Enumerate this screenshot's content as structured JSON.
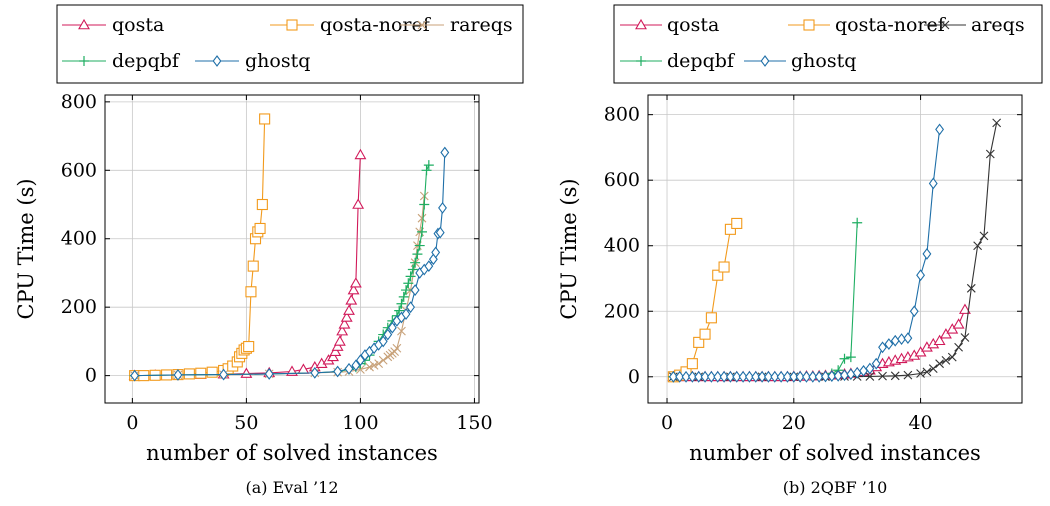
{
  "colors": {
    "qosta": "#d11a5a",
    "qosta-noref": "#f29a1c",
    "rareqs": "#c8a27a",
    "depqbf": "#1fae62",
    "ghostq": "#1f6fa8"
  },
  "chart_data": [
    {
      "type": "line",
      "caption": "(a) Eval ’12",
      "xlabel": "number of solved instances",
      "ylabel": "CPU Time (s)",
      "xlim": [
        -12,
        152
      ],
      "ylim": [
        -80,
        820
      ],
      "xticks": [
        0,
        50,
        100,
        150
      ],
      "yticks": [
        0,
        200,
        400,
        600,
        800
      ],
      "grid": true,
      "legend": {
        "position": "top",
        "rows": [
          [
            "qosta",
            "qosta-noref",
            "rareqs"
          ],
          [
            "depqbf",
            "ghostq"
          ]
        ]
      },
      "series": [
        {
          "name": "qosta",
          "marker": "triangle",
          "x": [
            1,
            10,
            20,
            30,
            40,
            50,
            60,
            70,
            75,
            80,
            83,
            86,
            88,
            89,
            90,
            91,
            92,
            93,
            94,
            95,
            96,
            97,
            98,
            99,
            100
          ],
          "y": [
            0,
            1,
            2,
            3,
            4,
            6,
            8,
            12,
            18,
            25,
            35,
            45,
            55,
            70,
            85,
            100,
            130,
            150,
            170,
            190,
            220,
            250,
            270,
            500,
            645
          ]
        },
        {
          "name": "qosta-noref",
          "marker": "square",
          "x": [
            1,
            5,
            10,
            15,
            20,
            25,
            30,
            35,
            40,
            42,
            44,
            46,
            47,
            48,
            49,
            50,
            51,
            52,
            53,
            54,
            55,
            56,
            57,
            58
          ],
          "y": [
            0,
            0,
            1,
            2,
            3,
            5,
            7,
            10,
            15,
            20,
            28,
            40,
            55,
            65,
            75,
            80,
            85,
            245,
            320,
            400,
            420,
            430,
            500,
            750
          ]
        },
        {
          "name": "rareqs",
          "marker": "cross",
          "x": [
            1,
            20,
            40,
            60,
            80,
            90,
            95,
            100,
            104,
            106,
            108,
            110,
            112,
            113,
            114,
            115,
            116,
            118,
            120,
            122,
            124,
            125,
            126,
            127,
            128
          ],
          "y": [
            0,
            2,
            3,
            5,
            8,
            10,
            12,
            18,
            25,
            30,
            35,
            45,
            55,
            60,
            65,
            70,
            80,
            130,
            190,
            250,
            330,
            380,
            420,
            460,
            525
          ]
        },
        {
          "name": "depqbf",
          "marker": "plus",
          "x": [
            1,
            20,
            40,
            60,
            80,
            90,
            95,
            98,
            100,
            102,
            104,
            106,
            108,
            110,
            112,
            114,
            116,
            117,
            118,
            119,
            120,
            121,
            122,
            123,
            124,
            125,
            126,
            127,
            128,
            129,
            130
          ],
          "y": [
            0,
            2,
            3,
            5,
            8,
            12,
            18,
            25,
            35,
            45,
            60,
            80,
            100,
            120,
            140,
            160,
            175,
            190,
            210,
            230,
            250,
            270,
            290,
            310,
            330,
            355,
            380,
            420,
            500,
            600,
            615
          ]
        },
        {
          "name": "ghostq",
          "marker": "diamond",
          "x": [
            1,
            20,
            40,
            60,
            80,
            90,
            95,
            98,
            100,
            102,
            104,
            106,
            108,
            110,
            112,
            114,
            116,
            118,
            120,
            122,
            124,
            126,
            128,
            130,
            132,
            133,
            134,
            135,
            136,
            137
          ],
          "y": [
            0,
            2,
            3,
            5,
            8,
            12,
            20,
            30,
            45,
            60,
            70,
            80,
            90,
            100,
            120,
            140,
            160,
            170,
            180,
            200,
            250,
            300,
            310,
            320,
            340,
            360,
            415,
            418,
            490,
            652
          ]
        }
      ]
    },
    {
      "type": "line",
      "caption": "(b) 2QBF ’10",
      "xlabel": "number of solved instances",
      "ylabel": "CPU Time (s)",
      "xlim": [
        -3,
        56
      ],
      "ylim": [
        -80,
        860
      ],
      "xticks": [
        0,
        20,
        40
      ],
      "yticks": [
        0,
        200,
        400,
        600,
        800
      ],
      "grid": true,
      "legend": {
        "position": "top",
        "rows": [
          [
            "qosta",
            "qosta-noref",
            "areqs"
          ],
          [
            "depqbf",
            "ghostq"
          ]
        ]
      },
      "series": [
        {
          "name": "qosta",
          "marker": "triangle",
          "x": [
            1,
            2,
            3,
            4,
            5,
            6,
            7,
            8,
            9,
            10,
            11,
            12,
            13,
            14,
            15,
            16,
            17,
            18,
            19,
            20,
            21,
            22,
            23,
            24,
            25,
            26,
            27,
            28,
            29,
            30,
            31,
            32,
            33,
            34,
            35,
            36,
            37,
            38,
            39,
            40,
            41,
            42,
            43,
            44,
            45,
            46,
            47
          ],
          "y": [
            0,
            0,
            0,
            0,
            0,
            0,
            0,
            0,
            0,
            0,
            0,
            0,
            0,
            0,
            0,
            0,
            0,
            0,
            0,
            1,
            1,
            2,
            2,
            3,
            4,
            5,
            6,
            8,
            10,
            12,
            15,
            20,
            30,
            40,
            45,
            50,
            55,
            60,
            65,
            75,
            90,
            100,
            110,
            130,
            145,
            160,
            205
          ]
        },
        {
          "name": "qosta-noref",
          "marker": "square",
          "x": [
            1,
            2,
            3,
            4,
            5,
            6,
            7,
            8,
            9,
            10,
            11
          ],
          "y": [
            0,
            5,
            15,
            40,
            105,
            130,
            180,
            310,
            335,
            450,
            468
          ]
        },
        {
          "name": "areqs",
          "marker": "cross",
          "x": [
            1,
            5,
            10,
            15,
            20,
            25,
            28,
            30,
            32,
            34,
            36,
            38,
            40,
            41,
            42,
            43,
            44,
            45,
            46,
            47,
            48,
            49,
            50,
            51,
            52
          ],
          "y": [
            0,
            0,
            0,
            0,
            0,
            0,
            1,
            1,
            1,
            2,
            3,
            5,
            10,
            15,
            25,
            40,
            50,
            60,
            90,
            120,
            270,
            400,
            430,
            680,
            775
          ]
        },
        {
          "name": "depqbf",
          "marker": "plus",
          "x": [
            1,
            2,
            3,
            4,
            5,
            6,
            7,
            8,
            9,
            10,
            11,
            12,
            13,
            14,
            15,
            16,
            17,
            18,
            19,
            20,
            21,
            22,
            23,
            24,
            25,
            26,
            27,
            28,
            29,
            30
          ],
          "y": [
            0,
            0,
            0,
            0,
            0,
            0,
            0,
            0,
            0,
            0,
            0,
            0,
            0,
            0,
            0,
            0,
            0,
            0,
            0,
            0,
            0,
            1,
            1,
            2,
            3,
            10,
            20,
            55,
            60,
            470
          ]
        },
        {
          "name": "ghostq",
          "marker": "diamond",
          "x": [
            1,
            2,
            3,
            4,
            5,
            6,
            7,
            8,
            9,
            10,
            11,
            12,
            13,
            14,
            15,
            16,
            17,
            18,
            19,
            20,
            21,
            22,
            23,
            24,
            25,
            26,
            27,
            28,
            29,
            30,
            31,
            32,
            33,
            34,
            35,
            36,
            37,
            38,
            39,
            40,
            41,
            42,
            43
          ],
          "y": [
            0,
            0,
            0,
            0,
            0,
            0,
            0,
            0,
            0,
            0,
            0,
            0,
            0,
            0,
            0,
            0,
            0,
            0,
            0,
            0,
            0,
            0,
            0,
            0,
            1,
            2,
            3,
            5,
            8,
            12,
            18,
            25,
            40,
            90,
            100,
            110,
            115,
            118,
            200,
            310,
            375,
            590,
            755
          ]
        }
      ]
    }
  ]
}
